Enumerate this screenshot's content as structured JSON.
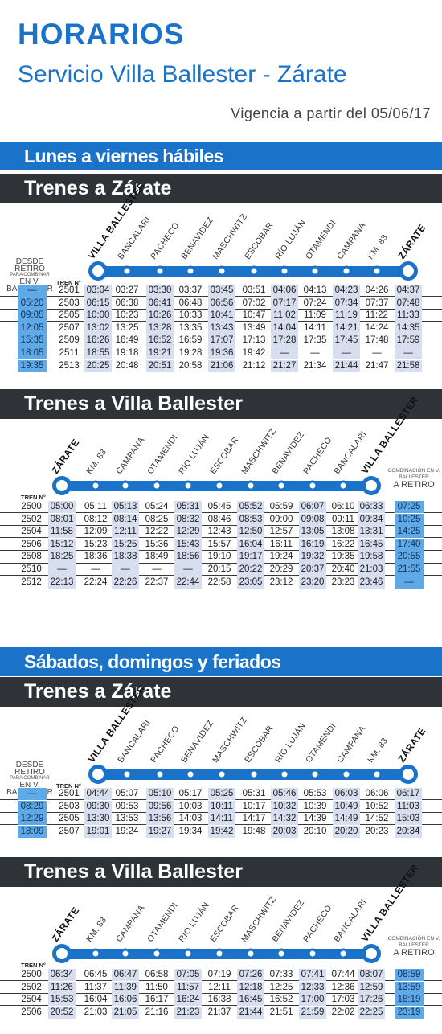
{
  "header": {
    "title": "HORARIOS",
    "subtitle": "Servicio Villa Ballester - Zárate",
    "validity": "Vigencia a partir del 05/06/17"
  },
  "labels": {
    "weekday": "Lunes a viernes hábiles",
    "weekend": "Sábados, domingos y feriados",
    "to_zarate": "Trenes a Zárate",
    "to_ballester": "Trenes a Villa Ballester",
    "desde_retiro": "DESDE RETIRO",
    "para_combinar": "PARA COMBINAR",
    "en_vb": "EN V. BALLESTER",
    "tren_n": "TREN N°",
    "comb_vb": "COMBINACIÓN EN V. BALLESTER",
    "a_retiro": "A RETIRO"
  },
  "stations_to_zarate": [
    "VILLA BALLESTER",
    "BANCALARI",
    "PACHECO",
    "BENAVIDEZ",
    "MASCHWITZ",
    "ESCOBAR",
    "RÍO LUJÁN",
    "OTAMENDI",
    "CAMPANA",
    "KM. 83",
    "ZÁRATE"
  ],
  "stations_to_ballester": [
    "ZÁRATE",
    "KM. 83",
    "CAMPANA",
    "OTAMENDI",
    "RÍO LUJÁN",
    "ESCOBAR",
    "MASCHWITZ",
    "BENAVIDEZ",
    "PACHECO",
    "BANCALARI",
    "VILLA BALLESTER"
  ],
  "weekday_to_zarate": [
    {
      "extra": "—",
      "train": "2501",
      "times": [
        "03:04",
        "03:27",
        "03:30",
        "03:37",
        "03:45",
        "03:51",
        "04:06",
        "04:13",
        "04:23",
        "04:26",
        "04:37"
      ]
    },
    {
      "extra": "05:20",
      "train": "2503",
      "times": [
        "06:15",
        "06:38",
        "06:41",
        "06:48",
        "06:56",
        "07:02",
        "07:17",
        "07:24",
        "07:34",
        "07:37",
        "07:48"
      ]
    },
    {
      "extra": "09:05",
      "train": "2505",
      "times": [
        "10:00",
        "10:23",
        "10:26",
        "10:33",
        "10:41",
        "10:47",
        "11:02",
        "11:09",
        "11:19",
        "11:22",
        "11:33"
      ]
    },
    {
      "extra": "12:05",
      "train": "2507",
      "times": [
        "13:02",
        "13:25",
        "13:28",
        "13:35",
        "13:43",
        "13:49",
        "14:04",
        "14:11",
        "14:21",
        "14:24",
        "14:35"
      ]
    },
    {
      "extra": "15:35",
      "train": "2509",
      "times": [
        "16:26",
        "16:49",
        "16:52",
        "16:59",
        "17:07",
        "17:13",
        "17:28",
        "17:35",
        "17:45",
        "17:48",
        "17:59"
      ]
    },
    {
      "extra": "18:05",
      "train": "2511",
      "times": [
        "18:55",
        "19:18",
        "19:21",
        "19:28",
        "19:36",
        "19:42",
        "—",
        "—",
        "—",
        "—",
        "—"
      ]
    },
    {
      "extra": "19:35",
      "train": "2513",
      "times": [
        "20:25",
        "20:48",
        "20:51",
        "20:58",
        "21:06",
        "21:12",
        "21:27",
        "21:34",
        "21:44",
        "21:47",
        "21:58"
      ]
    }
  ],
  "weekday_to_ballester": [
    {
      "train": "2500",
      "times": [
        "05:00",
        "05:11",
        "05:13",
        "05:24",
        "05:31",
        "05:45",
        "05:52",
        "05:59",
        "06:07",
        "06:10",
        "06:33"
      ],
      "extra": "07:25"
    },
    {
      "train": "2502",
      "times": [
        "08:01",
        "08:12",
        "08:14",
        "08:25",
        "08:32",
        "08:46",
        "08:53",
        "09:00",
        "09:08",
        "09:11",
        "09:34"
      ],
      "extra": "10:25"
    },
    {
      "train": "2504",
      "times": [
        "11:58",
        "12:09",
        "12:11",
        "12:22",
        "12:29",
        "12:43",
        "12:50",
        "12:57",
        "13:05",
        "13:08",
        "13:31"
      ],
      "extra": "14:25"
    },
    {
      "train": "2506",
      "times": [
        "15:12",
        "15:23",
        "15:25",
        "15:36",
        "15:43",
        "15:57",
        "16:04",
        "16:11",
        "16:19",
        "16:22",
        "16:45"
      ],
      "extra": "17:40"
    },
    {
      "train": "2508",
      "times": [
        "18:25",
        "18:36",
        "18:38",
        "18:49",
        "18:56",
        "19:10",
        "19:17",
        "19:24",
        "19:32",
        "19:35",
        "19:58"
      ],
      "extra": "20:55"
    },
    {
      "train": "2510",
      "times": [
        "—",
        "—",
        "—",
        "—",
        "—",
        "20:15",
        "20:22",
        "20:29",
        "20:37",
        "20:40",
        "21:03"
      ],
      "extra": "21:55"
    },
    {
      "train": "2512",
      "times": [
        "22:13",
        "22:24",
        "22:26",
        "22:37",
        "22:44",
        "22:58",
        "23:05",
        "23:12",
        "23:20",
        "23:23",
        "23:46"
      ],
      "extra": "—"
    }
  ],
  "weekend_to_zarate": [
    {
      "extra": "—",
      "train": "2501",
      "times": [
        "04:44",
        "05:07",
        "05:10",
        "05:17",
        "05:25",
        "05:31",
        "05:46",
        "05:53",
        "06:03",
        "06:06",
        "06:17"
      ]
    },
    {
      "extra": "08:29",
      "train": "2503",
      "times": [
        "09:30",
        "09:53",
        "09:56",
        "10:03",
        "10:11",
        "10:17",
        "10:32",
        "10:39",
        "10:49",
        "10:52",
        "11:03"
      ]
    },
    {
      "extra": "12:29",
      "train": "2505",
      "times": [
        "13:30",
        "13:53",
        "13:56",
        "14:03",
        "14:11",
        "14:17",
        "14:32",
        "14:39",
        "14:49",
        "14:52",
        "15:03"
      ]
    },
    {
      "extra": "18:09",
      "train": "2507",
      "times": [
        "19:01",
        "19:24",
        "19:27",
        "19:34",
        "19:42",
        "19:48",
        "20:03",
        "20:10",
        "20:20",
        "20:23",
        "20:34"
      ]
    }
  ],
  "weekend_to_ballester": [
    {
      "train": "2500",
      "times": [
        "06:34",
        "06:45",
        "06:47",
        "06:58",
        "07:05",
        "07:19",
        "07:26",
        "07:33",
        "07:41",
        "07:44",
        "08:07"
      ],
      "extra": "08:59"
    },
    {
      "train": "2502",
      "times": [
        "11:26",
        "11:37",
        "11:39",
        "11:50",
        "11:57",
        "12:11",
        "12:18",
        "12:25",
        "12:33",
        "12:36",
        "12:59"
      ],
      "extra": "13:59"
    },
    {
      "train": "2504",
      "times": [
        "15:53",
        "16:04",
        "16:06",
        "16:17",
        "16:24",
        "16:38",
        "16:45",
        "16:52",
        "17:00",
        "17:03",
        "17:26"
      ],
      "extra": "18:19"
    },
    {
      "train": "2506",
      "times": [
        "20:52",
        "21:03",
        "21:05",
        "21:16",
        "21:23",
        "21:37",
        "21:44",
        "21:51",
        "21:59",
        "22:02",
        "22:25"
      ],
      "extra": "23:19"
    }
  ]
}
